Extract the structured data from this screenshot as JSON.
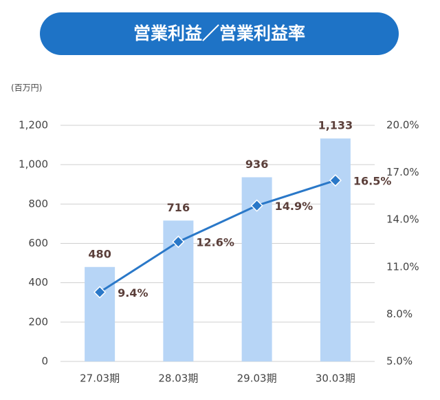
{
  "chart_data": {
    "type": "combo",
    "title": "営業利益／営業利益率",
    "y_unit_label": "(百万円)",
    "categories": [
      "27.03期",
      "28.03期",
      "29.03期",
      "30.03期"
    ],
    "series": [
      {
        "name": "営業利益",
        "type": "bar",
        "color": "#b7d5f6",
        "axis": "y",
        "values": [
          480,
          716,
          936,
          1133
        ],
        "value_labels": [
          "480",
          "716",
          "936",
          "1,133"
        ]
      },
      {
        "name": "営業利益率",
        "type": "line",
        "color": "#2a78c8",
        "axis": "y2",
        "values": [
          9.4,
          12.6,
          14.9,
          16.5
        ],
        "value_labels": [
          "9.4%",
          "12.6%",
          "14.9%",
          "16.5%"
        ]
      }
    ],
    "ylim": [
      0,
      1200
    ],
    "yticks": [
      0,
      200,
      400,
      600,
      800,
      {
        "value": 1000,
        "label": "1,000"
      },
      {
        "value": 1200,
        "label": "1,200"
      }
    ],
    "y2lim": [
      5,
      20
    ],
    "y2ticks": [
      {
        "value": 5,
        "label": "5.0%"
      },
      {
        "value": 8,
        "label": "8.0%"
      },
      {
        "value": 11,
        "label": "11.0%"
      },
      {
        "value": 14,
        "label": "14.0%"
      },
      {
        "value": 17,
        "label": "17.0%"
      },
      {
        "value": 20,
        "label": "20.0%"
      }
    ],
    "grid": true
  }
}
